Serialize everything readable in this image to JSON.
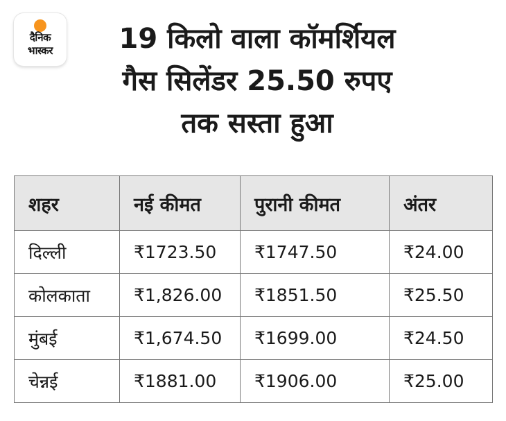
{
  "logo": {
    "line1": "दैनिक",
    "line2": "भास्कर",
    "accent_color": "#f7941d"
  },
  "title": {
    "line1": "19 किलो वाला कॉमर्शियल",
    "line2": "गैस सिलेंडर 25.50 रुपए",
    "line3": "तक सस्ता हुआ"
  },
  "chart_data": {
    "type": "table",
    "columns": [
      "शहर",
      "नई कीमत",
      "पुरानी कीमत",
      "अंतर"
    ],
    "rows": [
      [
        "दिल्ली",
        "₹1723.50",
        "₹1747.50",
        "₹24.00"
      ],
      [
        "कोलकाता",
        "₹1,826.00",
        "₹1851.50",
        "₹25.50"
      ],
      [
        "मुंबई",
        "₹1,674.50",
        "₹1699.00",
        "₹24.50"
      ],
      [
        "चेन्नई",
        "₹1881.00",
        "₹1906.00",
        "₹25.00"
      ]
    ]
  },
  "colors": {
    "header_bg": "#e6e6e6",
    "border": "#777777",
    "text": "#1a1a1a"
  }
}
